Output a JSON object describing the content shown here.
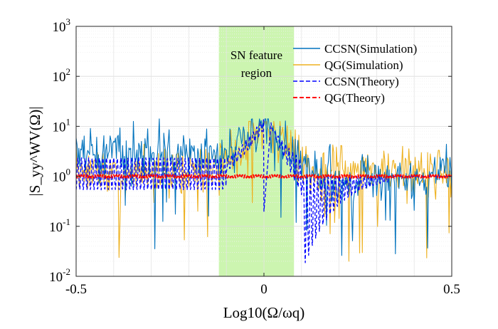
{
  "chart_data": {
    "type": "line",
    "title": "",
    "xlabel": "Log10(Ω/ωq)",
    "ylabel": "|S_yy^WV(Ω)|",
    "xlim": [
      -0.5,
      0.5
    ],
    "ylim": [
      0.01,
      1000
    ],
    "yscale": "log",
    "grid": true,
    "legend_position": "top-right",
    "x_ticks": [
      -0.5,
      0,
      0.5
    ],
    "x_tick_labels": [
      "-0.5",
      "0",
      "0.5"
    ],
    "y_ticks": [
      0.01,
      0.1,
      1,
      10,
      100,
      1000
    ],
    "y_tick_labels": [
      {
        "base": "10",
        "exp": "-2"
      },
      {
        "base": "10",
        "exp": "-1"
      },
      {
        "base": "10",
        "exp": "0"
      },
      {
        "base": "10",
        "exp": "1"
      },
      {
        "base": "10",
        "exp": "2"
      },
      {
        "base": "10",
        "exp": "3"
      }
    ],
    "shaded_region": {
      "x_range": [
        -0.12,
        0.08
      ],
      "label_lines": [
        "SN feature",
        "region"
      ],
      "color": "#ccf5b0"
    },
    "series": [
      {
        "name": "CCSN(Simulation)",
        "style": "solid",
        "color": "#0072bd"
      },
      {
        "name": "QG(Simulation)",
        "style": "solid",
        "color": "#edb120"
      },
      {
        "name": "CCSN(Theory)",
        "style": "dashed",
        "color": "#0000ff"
      },
      {
        "name": "QG(Theory)",
        "style": "dashed",
        "color": "#ff0000"
      }
    ],
    "model": {
      "peak_x": 0.0,
      "peak_value": 15,
      "dip_x": 0.0,
      "dip_value": 0.2,
      "resonance_dip_x": 0.11,
      "resonance_dip_value": 0.017,
      "baseline": 1.0,
      "simulation_noise_spread_decades": 1.0
    }
  }
}
